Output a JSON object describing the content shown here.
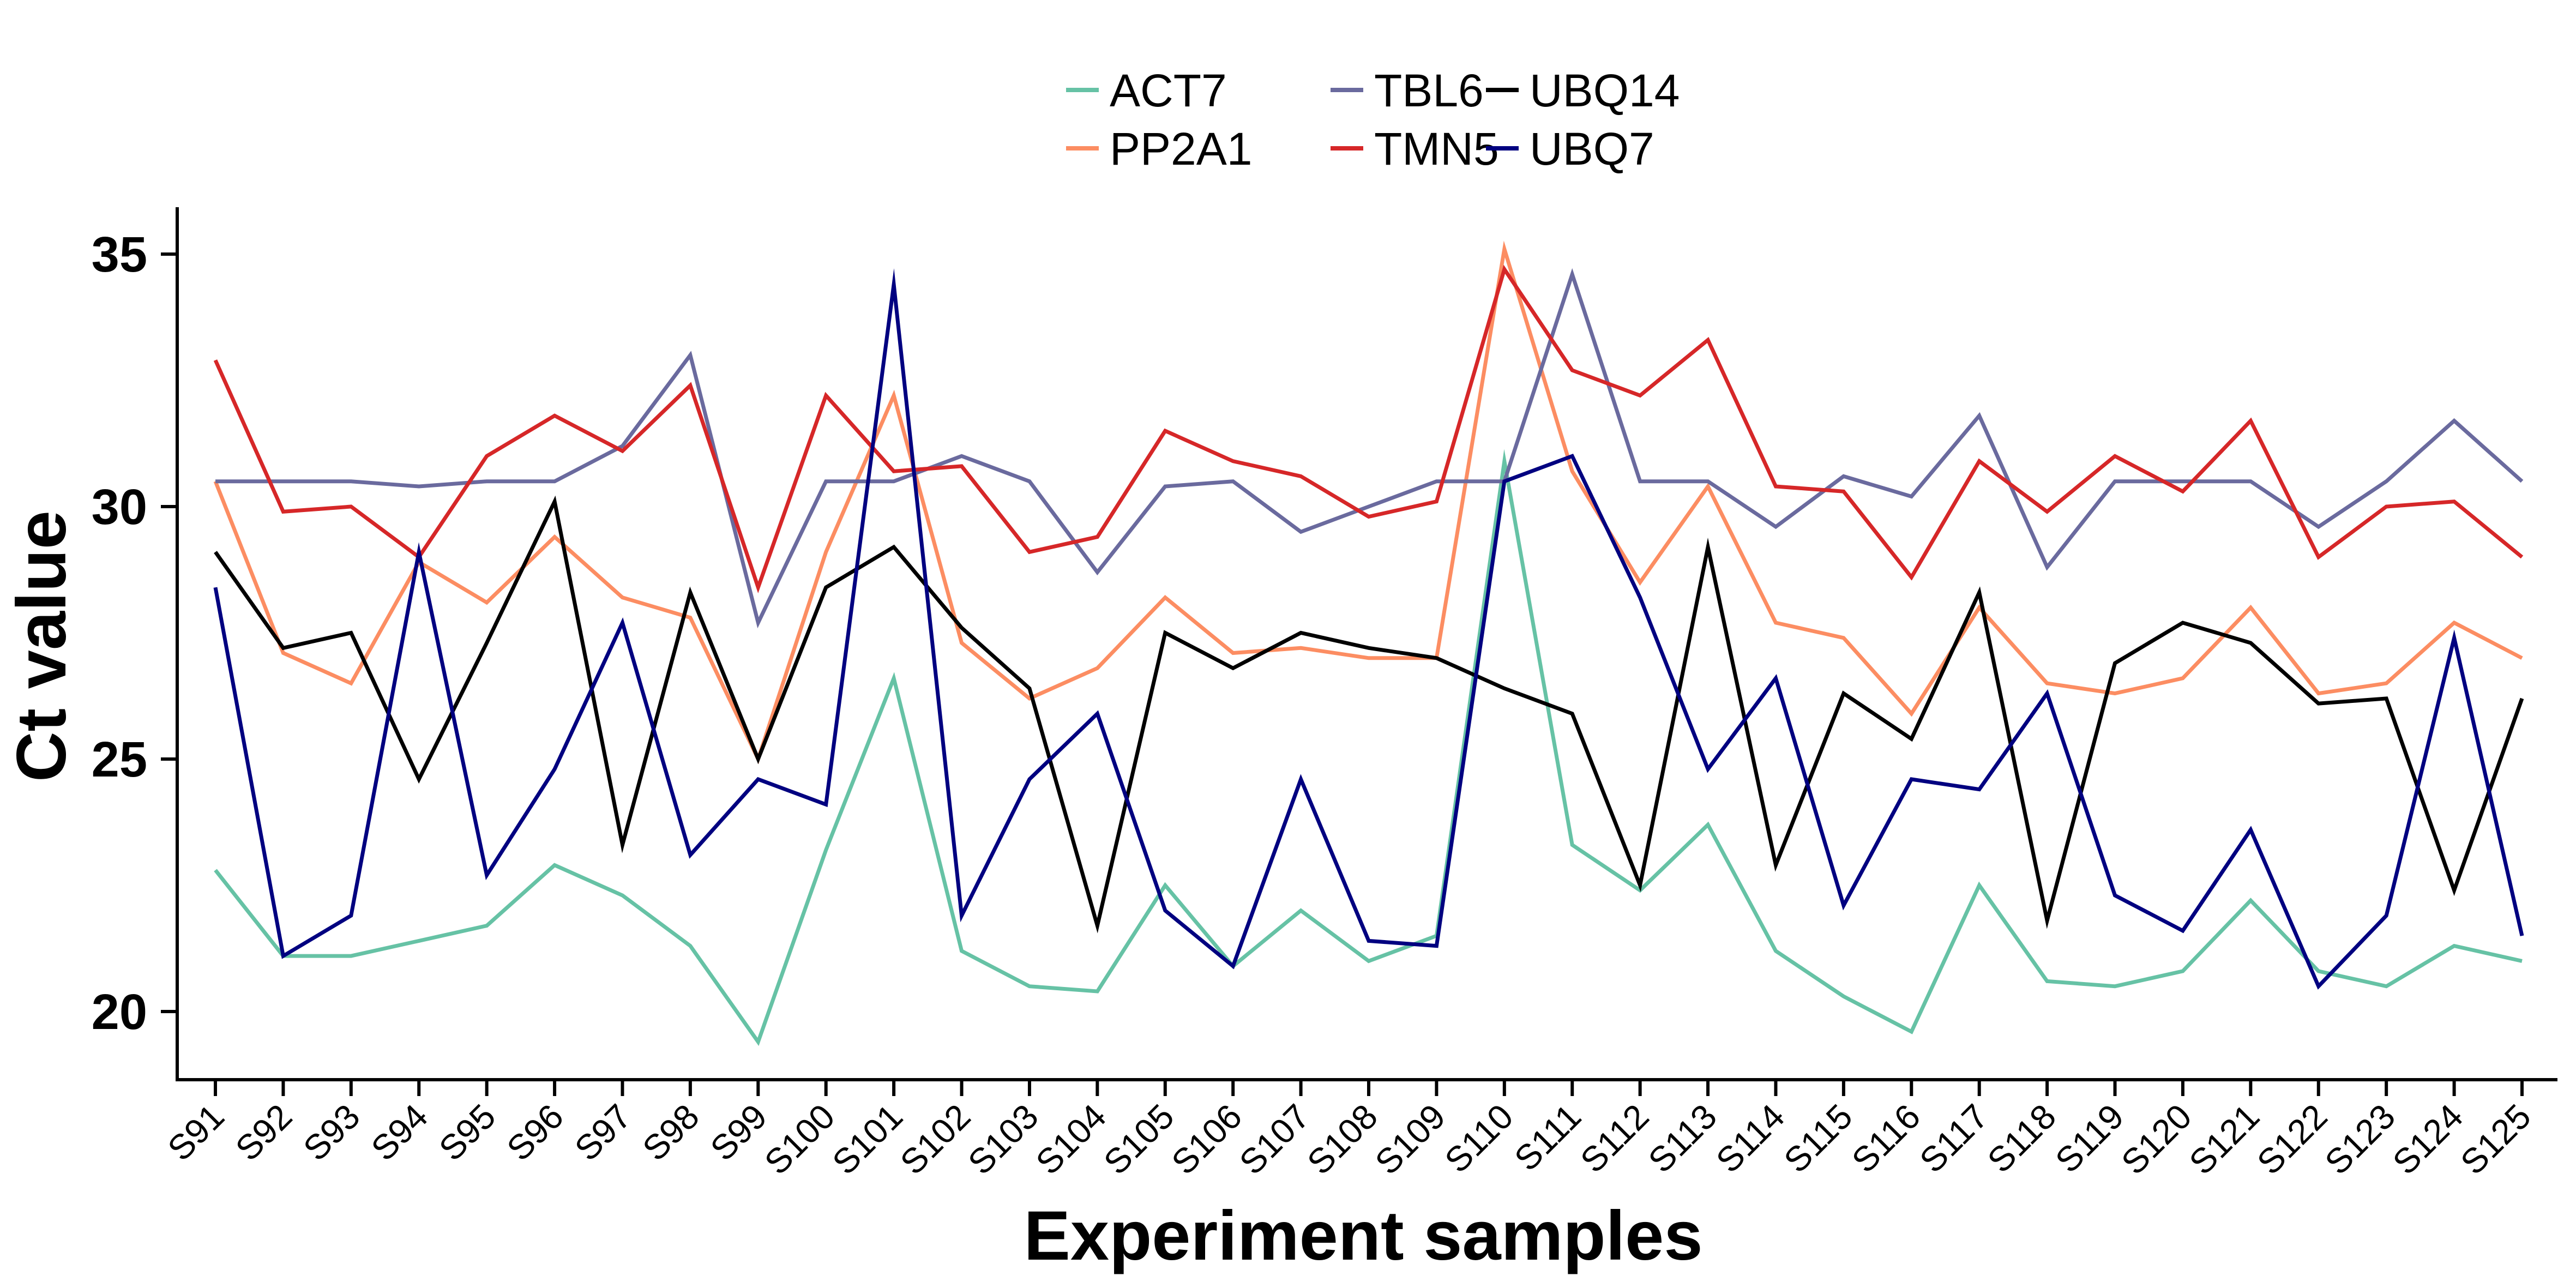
{
  "chart_data": {
    "type": "line",
    "title": "",
    "xlabel": "Experiment samples",
    "ylabel": "Ct value",
    "ylim": [
      18.5,
      36
    ],
    "yticks": [
      20,
      25,
      30,
      35
    ],
    "grid": false,
    "legend_position": "top",
    "categories": [
      "S91",
      "S92",
      "S93",
      "S94",
      "S95",
      "S96",
      "S97",
      "S98",
      "S99",
      "S100",
      "S101",
      "S102",
      "S103",
      "S104",
      "S105",
      "S106",
      "S107",
      "S108",
      "S109",
      "S110",
      "S111",
      "S112",
      "S113",
      "S114",
      "S115",
      "S116",
      "S117",
      "S118",
      "S119",
      "S120",
      "S121",
      "S122",
      "S123",
      "S124",
      "S125"
    ],
    "series": [
      {
        "name": "ACT7",
        "color": "#66c2a5",
        "values": [
          22.8,
          21.1,
          21.1,
          21.4,
          21.7,
          22.9,
          22.3,
          21.3,
          19.4,
          23.2,
          26.6,
          21.2,
          20.5,
          20.4,
          22.5,
          20.9,
          22.0,
          21.0,
          21.5,
          30.9,
          23.3,
          22.4,
          23.7,
          21.2,
          20.3,
          19.6,
          22.5,
          20.6,
          20.5,
          20.8,
          22.2,
          20.8,
          20.5,
          21.3,
          21.0
        ]
      },
      {
        "name": "PP2A1",
        "color": "#fc8d62",
        "values": [
          30.5,
          27.1,
          26.5,
          28.9,
          28.1,
          29.4,
          28.2,
          27.8,
          25.0,
          29.1,
          32.2,
          27.3,
          26.2,
          26.8,
          28.2,
          27.1,
          27.2,
          27.0,
          27.0,
          35.1,
          30.7,
          28.5,
          30.4,
          27.7,
          27.4,
          25.9,
          28.0,
          26.5,
          26.3,
          26.6,
          28.0,
          26.3,
          26.5,
          27.7,
          27.0
        ]
      },
      {
        "name": "TBL6",
        "color": "#6a6a9e",
        "values": [
          30.5,
          30.5,
          30.5,
          30.4,
          30.5,
          30.5,
          31.2,
          33.0,
          27.7,
          30.5,
          30.5,
          31.0,
          30.5,
          28.7,
          30.4,
          30.5,
          29.5,
          30.0,
          30.5,
          30.5,
          34.6,
          30.5,
          30.5,
          29.6,
          30.6,
          30.2,
          31.8,
          28.8,
          30.5,
          30.5,
          30.5,
          29.6,
          30.5,
          31.7,
          30.5
        ]
      },
      {
        "name": "TMN5",
        "color": "#d62728",
        "values": [
          32.9,
          29.9,
          30.0,
          29.0,
          31.0,
          31.8,
          31.1,
          32.4,
          28.4,
          32.2,
          30.7,
          30.8,
          29.1,
          29.4,
          31.5,
          30.9,
          30.6,
          29.8,
          30.1,
          34.7,
          32.7,
          32.2,
          33.3,
          30.4,
          30.3,
          28.6,
          30.9,
          29.9,
          31.0,
          30.3,
          31.7,
          29.0,
          30.0,
          30.1,
          29.0
        ]
      },
      {
        "name": "UBQ14",
        "color": "#000000",
        "values": [
          29.1,
          27.2,
          27.5,
          24.6,
          27.3,
          30.1,
          23.3,
          28.3,
          25.0,
          28.4,
          29.2,
          27.6,
          26.4,
          21.7,
          27.5,
          26.8,
          27.5,
          27.2,
          27.0,
          26.4,
          25.9,
          22.5,
          29.2,
          22.9,
          26.3,
          25.4,
          28.3,
          21.8,
          26.9,
          27.7,
          27.3,
          26.1,
          26.2,
          22.4,
          26.2
        ]
      },
      {
        "name": "UBQ7",
        "color": "#000080",
        "values": [
          28.4,
          21.1,
          21.9,
          29.1,
          22.7,
          24.8,
          27.7,
          23.1,
          24.6,
          24.1,
          34.4,
          21.9,
          24.6,
          25.9,
          22.0,
          20.9,
          24.6,
          21.4,
          21.3,
          30.5,
          31.0,
          28.2,
          24.8,
          26.6,
          22.1,
          24.6,
          24.4,
          26.3,
          22.3,
          21.6,
          23.6,
          20.5,
          21.9,
          27.4,
          21.5
        ]
      }
    ]
  }
}
